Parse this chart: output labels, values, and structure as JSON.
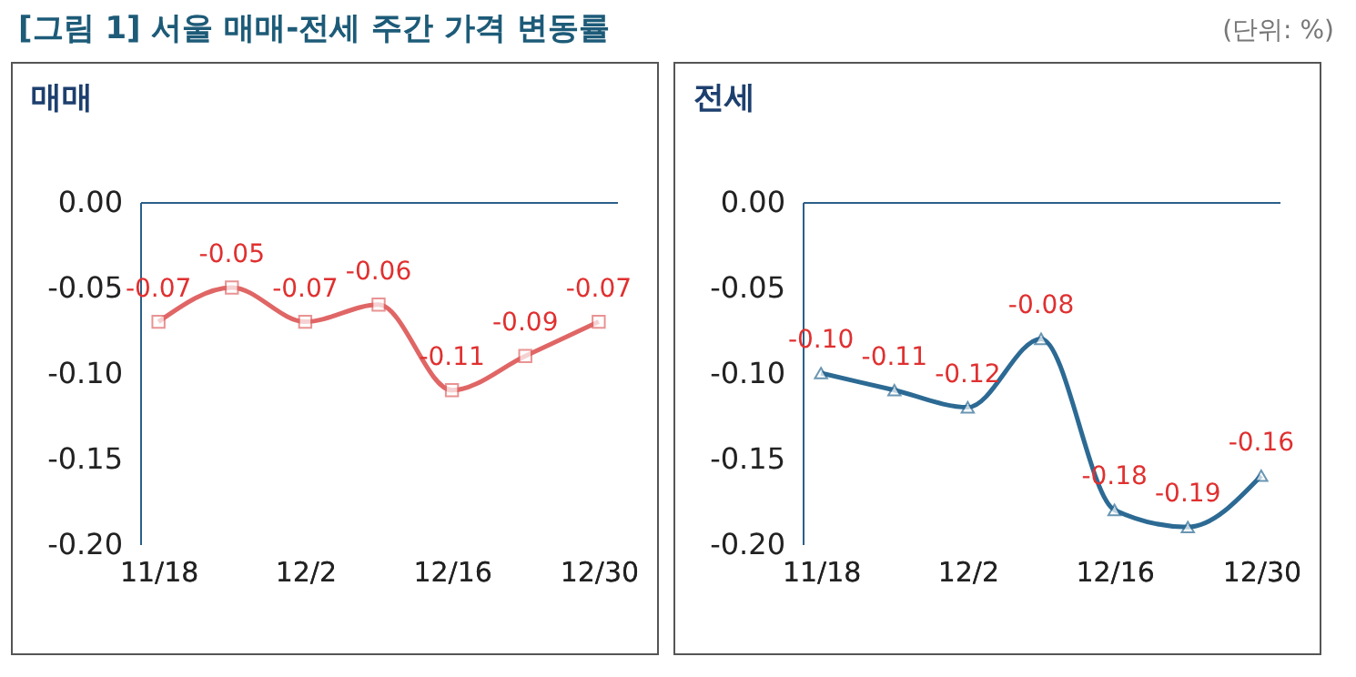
{
  "chart_data": [
    {
      "type": "line",
      "title": "[그림 1] 서울 매매-전세 주간 가격 변동률",
      "annotations": [
        "(단위: %)"
      ],
      "subtitle": "매매",
      "categories": [
        "11/18",
        null,
        "12/2",
        null,
        "12/16",
        null,
        "12/30"
      ],
      "series": [
        {
          "color": "#e06666",
          "values": [
            -0.07,
            -0.05,
            -0.07,
            -0.06,
            -0.11,
            -0.09,
            -0.07
          ]
        }
      ],
      "ylim": [
        -0.2,
        0
      ],
      "yticks": [
        {
          "value": 0,
          "label": "0.00"
        },
        {
          "value": -0.05,
          "label": "-0.05"
        },
        {
          "value": -0.1,
          "label": "-0.10"
        },
        {
          "value": -0.15,
          "label": "-0.15"
        },
        {
          "value": -0.2,
          "label": "-0.20"
        }
      ],
      "value_labels": [
        "-0.07",
        "-0.05",
        "-0.07",
        "-0.06",
        "-0.11",
        "-0.09",
        "-0.07"
      ],
      "marker": "square",
      "grid": false,
      "legend": false
    },
    {
      "type": "line",
      "subtitle": "전세",
      "categories": [
        "11/18",
        null,
        "12/2",
        null,
        "12/16",
        null,
        "12/30"
      ],
      "series": [
        {
          "color": "#2c6a94",
          "values": [
            -0.1,
            -0.11,
            -0.12,
            -0.08,
            -0.18,
            -0.19,
            -0.16
          ]
        }
      ],
      "ylim": [
        -0.2,
        0
      ],
      "yticks": [
        {
          "value": 0,
          "label": "0.00"
        },
        {
          "value": -0.05,
          "label": "-0.05"
        },
        {
          "value": -0.1,
          "label": "-0.10"
        },
        {
          "value": -0.15,
          "label": "-0.15"
        },
        {
          "value": -0.2,
          "label": "-0.20"
        }
      ],
      "value_labels": [
        "-0.10",
        "-0.11",
        "-0.12",
        "-0.08",
        "-0.18",
        "-0.19",
        "-0.16"
      ],
      "marker": "triangle-up",
      "grid": false,
      "legend": false
    }
  ]
}
